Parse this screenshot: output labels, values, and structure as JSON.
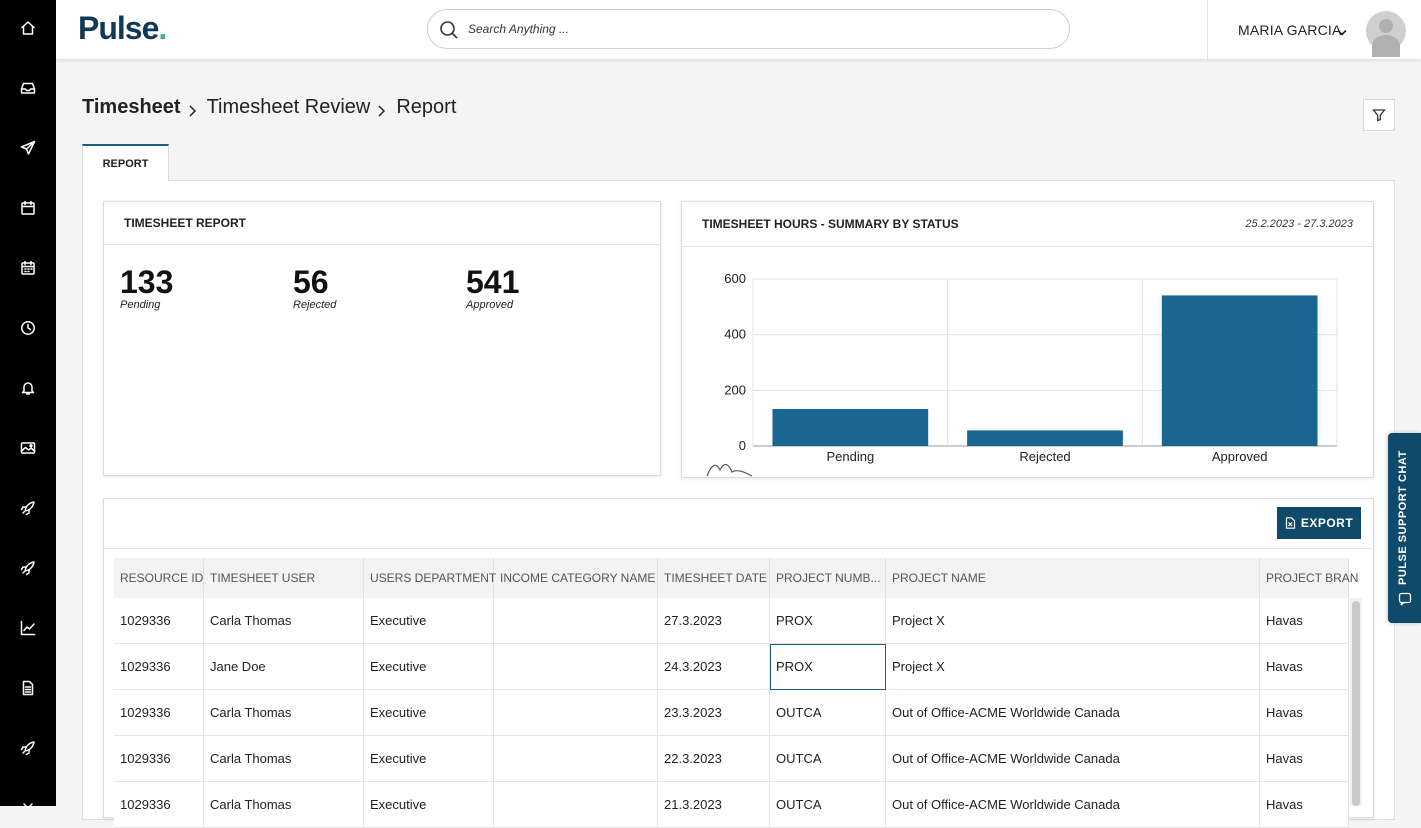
{
  "nav": {
    "items": [
      {
        "icon": "home-icon"
      },
      {
        "icon": "inbox-icon"
      },
      {
        "icon": "send-icon"
      },
      {
        "icon": "calendar-icon"
      },
      {
        "icon": "calendar-grid-icon"
      },
      {
        "icon": "clock-icon"
      },
      {
        "icon": "bell-icon"
      },
      {
        "icon": "image-icon"
      },
      {
        "icon": "rocket-icon"
      },
      {
        "icon": "rocket-icon"
      },
      {
        "icon": "trend-chart-icon"
      },
      {
        "icon": "document-icon"
      },
      {
        "icon": "rocket-icon"
      }
    ]
  },
  "header": {
    "logo": "Pulse",
    "logo_dot": ".",
    "search_placeholder": "Search Anything ...",
    "user_name": "MARIA GARCIA"
  },
  "breadcrumb": {
    "root": "Timesheet",
    "middle": "Timesheet Review",
    "current": "Report"
  },
  "tabs": [
    {
      "label": "REPORT",
      "active": true
    }
  ],
  "report_card": {
    "title": "TIMESHEET REPORT",
    "stats": [
      {
        "value": "133",
        "label": "Pending"
      },
      {
        "value": "56",
        "label": "Rejected"
      },
      {
        "value": "541",
        "label": "Approved"
      }
    ]
  },
  "chart_card": {
    "title": "TIMESHEET HOURS - SUMMARY BY STATUS",
    "date_range": "25.2.2023 - 27.3.2023"
  },
  "chart_data": {
    "type": "bar",
    "categories": [
      "Pending",
      "Rejected",
      "Approved"
    ],
    "values": [
      133,
      56,
      541
    ],
    "yticks": [
      0,
      200,
      400,
      600
    ],
    "ylim": [
      0,
      600
    ],
    "color": "#1a6591",
    "grid": true
  },
  "table": {
    "export_label": "EXPORT",
    "columns": [
      "RESOURCE ID",
      "TIMESHEET USER",
      "USERS DEPARTMENT",
      "INCOME CATEGORY NAME",
      "TIMESHEET DATE",
      "PROJECT NUMB...",
      "PROJECT NAME",
      "PROJECT BRAN"
    ],
    "rows": [
      [
        "1029336",
        "Carla Thomas",
        "Executive",
        "",
        "27.3.2023",
        "PROX",
        "Project X",
        "Havas"
      ],
      [
        "1029336",
        "Jane Doe",
        "Executive",
        "",
        "24.3.2023",
        "PROX",
        "Project X",
        "Havas"
      ],
      [
        "1029336",
        "Carla Thomas",
        "Executive",
        "",
        "23.3.2023",
        "OUTCA",
        "Out of Office-ACME Worldwide Canada",
        "Havas"
      ],
      [
        "1029336",
        "Carla Thomas",
        "Executive",
        "",
        "22.3.2023",
        "OUTCA",
        "Out of Office-ACME Worldwide Canada",
        "Havas"
      ],
      [
        "1029336",
        "Carla Thomas",
        "Executive",
        "",
        "21.3.2023",
        "OUTCA",
        "Out of Office-ACME Worldwide Canada",
        "Havas"
      ]
    ]
  },
  "support": {
    "label": "PULSE SUPPORT CHAT"
  }
}
